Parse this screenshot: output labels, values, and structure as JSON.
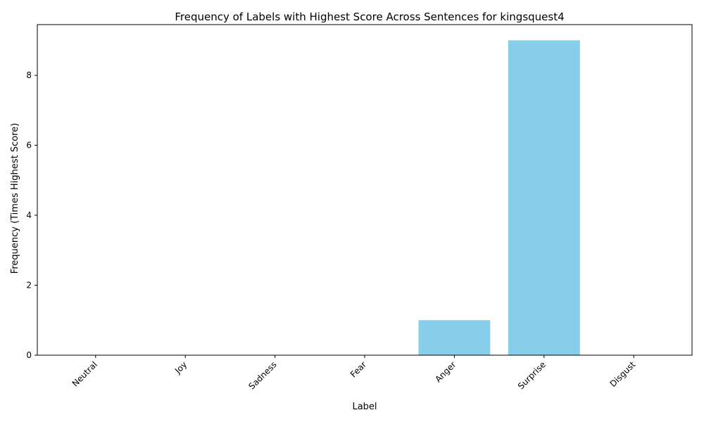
{
  "chart_data": {
    "type": "bar",
    "title": "Frequency of Labels with Highest Score Across Sentences for kingsquest4",
    "xlabel": "Label",
    "ylabel": "Frequency (Times Highest Score)",
    "categories": [
      "Neutral",
      "Joy",
      "Sadness",
      "Fear",
      "Anger",
      "Surprise",
      "Disgust"
    ],
    "values": [
      0,
      0,
      0,
      0,
      1,
      9,
      0
    ],
    "ylim": [
      0,
      9.45
    ],
    "yticks": [
      0,
      2,
      4,
      6,
      8
    ],
    "bar_color": "#87CEEB",
    "grid": false,
    "legend": "none"
  }
}
